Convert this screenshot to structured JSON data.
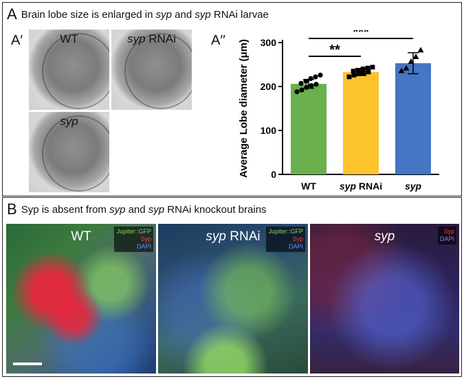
{
  "panel_a": {
    "letter": "A",
    "title_parts": [
      "Brain lobe size is enlarged in ",
      "syp",
      " and ",
      "syp",
      " RNAi larvae"
    ],
    "sub_a1": "A′",
    "sub_a2": "A′′",
    "images": [
      {
        "label": "WT"
      },
      {
        "label_italic": "syp",
        "label_rest": " RNAi"
      },
      {
        "label_italic": "syp"
      }
    ]
  },
  "panel_b": {
    "letter": "B",
    "title_parts": [
      "Syp is absent from ",
      "syp",
      " and ",
      "syp",
      " RNAi knockout brains"
    ],
    "images": [
      {
        "label": "WT",
        "legend": [
          "Jupiter::GFP",
          "Syp",
          "DAPI"
        ]
      },
      {
        "label_italic": "syp",
        "label_rest": " RNAi",
        "legend": [
          "Jupiter::GFP",
          "Syp",
          "DAPI"
        ]
      },
      {
        "label_italic": "syp",
        "legend": [
          "Syp",
          "DAPI"
        ]
      }
    ]
  },
  "chart_data": {
    "type": "bar",
    "ylabel": "Average Lobe diameter (μm)",
    "ylim": [
      0,
      300
    ],
    "yticks": [
      0,
      100,
      200,
      300
    ],
    "categories": [
      {
        "italic": "",
        "rest": "WT"
      },
      {
        "italic": "syp",
        "rest": " RNAi"
      },
      {
        "italic": "syp",
        "rest": ""
      }
    ],
    "values": [
      206,
      233,
      253
    ],
    "errors": [
      10,
      8,
      24
    ],
    "colors": [
      "#6ab04c",
      "#fcc32c",
      "#4575c4"
    ],
    "points": [
      [
        188,
        192,
        198,
        202,
        205,
        207,
        212,
        218,
        222,
        226
      ],
      [
        222,
        226,
        229,
        231,
        233,
        235,
        237,
        240,
        242,
        244
      ],
      [
        236,
        242,
        257,
        268,
        283
      ]
    ],
    "significance": [
      {
        "from": 0,
        "to": 1,
        "label": "**"
      },
      {
        "from": 0,
        "to": 2,
        "label": "***"
      }
    ]
  }
}
